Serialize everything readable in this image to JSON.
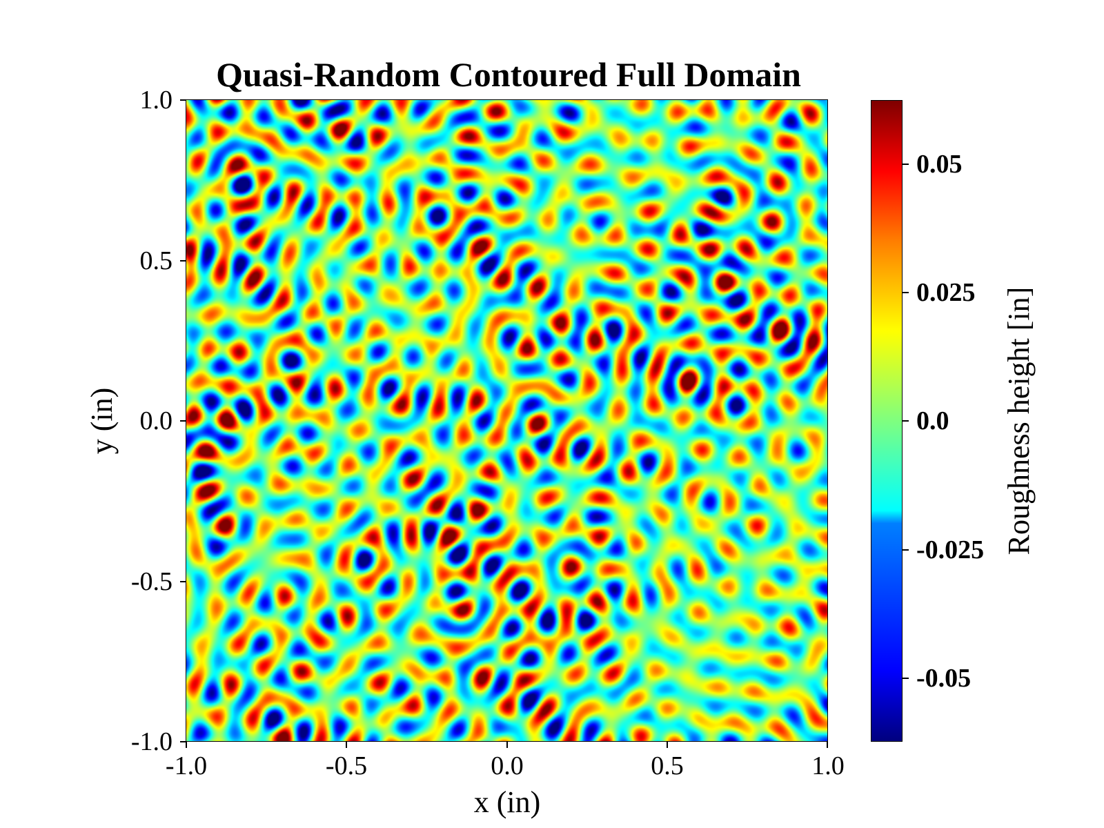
{
  "chart_data": {
    "type": "heatmap",
    "title": "Quasi-Random Contoured Full Domain",
    "xlabel": "x (in)",
    "ylabel": "y (in)",
    "xlim": [
      -1.0,
      1.0
    ],
    "ylim": [
      -1.0,
      1.0
    ],
    "x_ticks": [
      "-1.0",
      "-0.5",
      "0.0",
      "0.5",
      "1.0"
    ],
    "y_ticks": [
      "-1.0",
      "-0.5",
      "0.0",
      "0.5",
      "1.0"
    ],
    "colorbar": {
      "label": "Roughness height [in]",
      "range": [
        -0.062,
        0.062
      ],
      "ticks": [
        "-0.05",
        "-0.025",
        "0.0",
        "0.025",
        "0.05"
      ],
      "colormap": "jet"
    },
    "grid": false,
    "pattern": "quasi-random roughness field with many small blobs, values roughly between -0.06 and 0.06"
  }
}
